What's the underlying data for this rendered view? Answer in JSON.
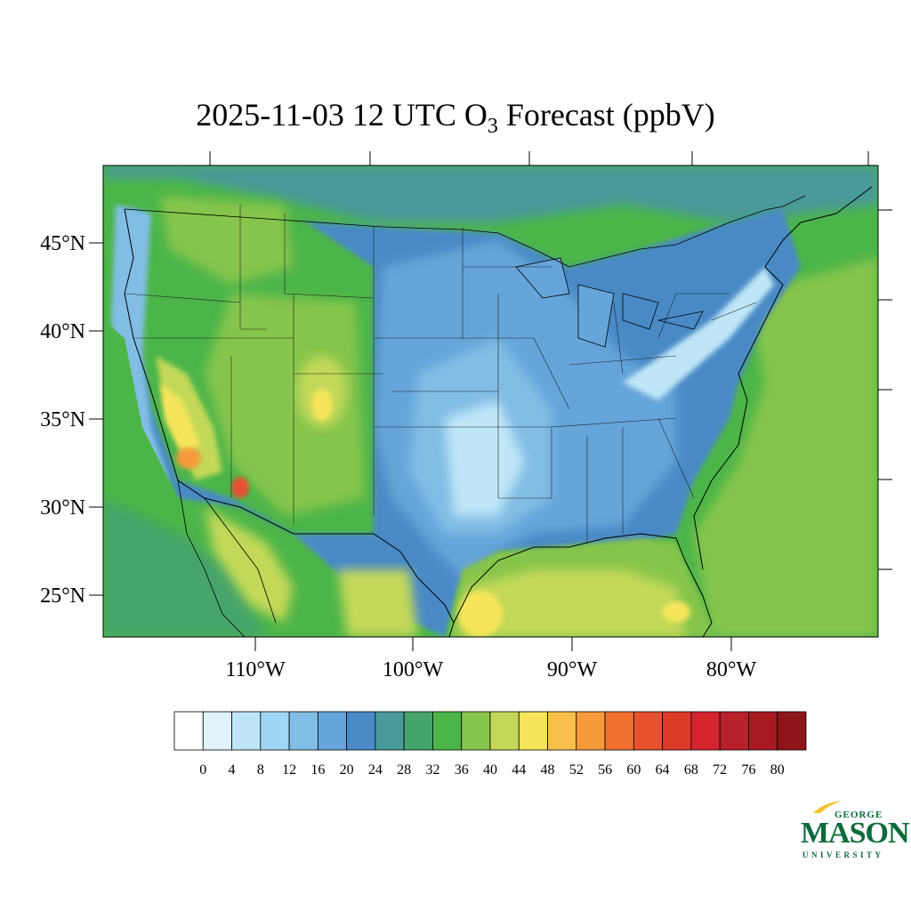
{
  "title": {
    "main": "2025-11-03 12 UTC O",
    "sub": "3",
    "tail": " Forecast (ppbV)"
  },
  "lat_labels": [
    "45°N",
    "40°N",
    "35°N",
    "30°N",
    "25°N"
  ],
  "lon_labels": [
    "110°W",
    "100°W",
    "90°W",
    "80°W"
  ],
  "colorbar": {
    "colors": [
      "#ffffff",
      "#e0f3fb",
      "#bfe6f7",
      "#9fd6f4",
      "#82bde6",
      "#66a5d9",
      "#4a8ac6",
      "#4a9a9a",
      "#46a46a",
      "#4cb548",
      "#86c54c",
      "#c3d858",
      "#f6e55a",
      "#f8c04a",
      "#f89a3a",
      "#f2702e",
      "#e85030",
      "#de3a2a",
      "#d42430",
      "#b8202a",
      "#a81a22",
      "#8e1418"
    ],
    "tick_labels": [
      "0",
      "4",
      "8",
      "12",
      "16",
      "20",
      "24",
      "28",
      "32",
      "36",
      "40",
      "44",
      "48",
      "52",
      "56",
      "60",
      "64",
      "68",
      "72",
      "76",
      "80"
    ]
  },
  "logo": {
    "top": "GEORGE",
    "main": "MASON",
    "bottom": "UNIVERSITY",
    "color": "#0b6b3a",
    "accent": "#f2c230"
  }
}
